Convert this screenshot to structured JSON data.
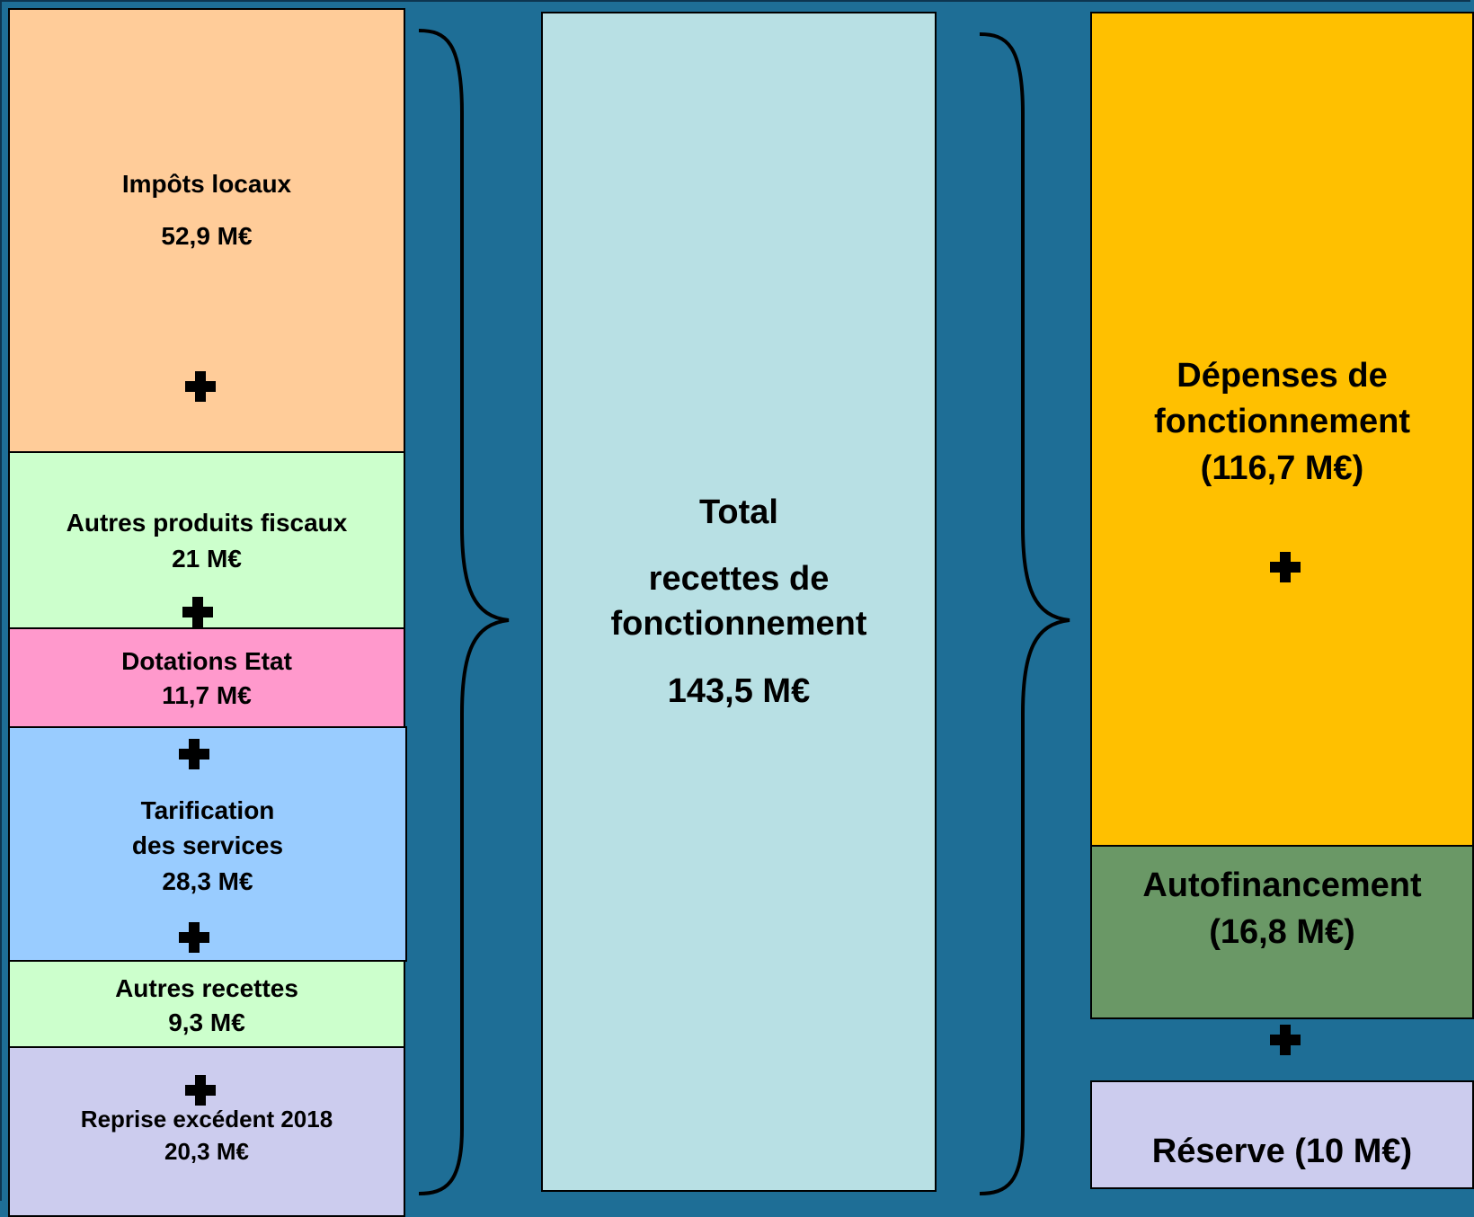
{
  "revenues": [
    {
      "label": "Impôts locaux",
      "value": "52,9 M€",
      "color": "#ffcc99"
    },
    {
      "label": "Autres produits fiscaux",
      "value": "21 M€",
      "color": "#ccffcc"
    },
    {
      "label": "Dotations Etat",
      "value": "11,7 M€",
      "color": "#ff99cc"
    },
    {
      "label_line1": "Tarification",
      "label_line2": "des services",
      "value": "28,3 M€",
      "color": "#99ccff"
    },
    {
      "label": "Autres recettes",
      "value": "9,3 M€",
      "color": "#ccffcc"
    },
    {
      "label": "Reprise excédent 2018",
      "value": "20,3 M€",
      "color": "#ccccee"
    }
  ],
  "total": {
    "line1": "Total",
    "line2": "recettes de",
    "line3": "fonctionnement",
    "value": "143,5 M€",
    "color": "#b8e0e4"
  },
  "uses": [
    {
      "line1": "Dépenses de",
      "line2": "fonctionnement",
      "value": "(116,7 M€)",
      "color": "#ffc000"
    },
    {
      "line1": "Autofinancement",
      "value": "(16,8 M€)",
      "color": "#6a9866"
    },
    {
      "label": "Réserve  (10 M€)",
      "color": "#ccccee"
    }
  ],
  "colors": {
    "background": "#1e6e96",
    "brace": "#000000"
  },
  "icons": {
    "plus": "plus-icon",
    "brace": "curly-brace"
  }
}
